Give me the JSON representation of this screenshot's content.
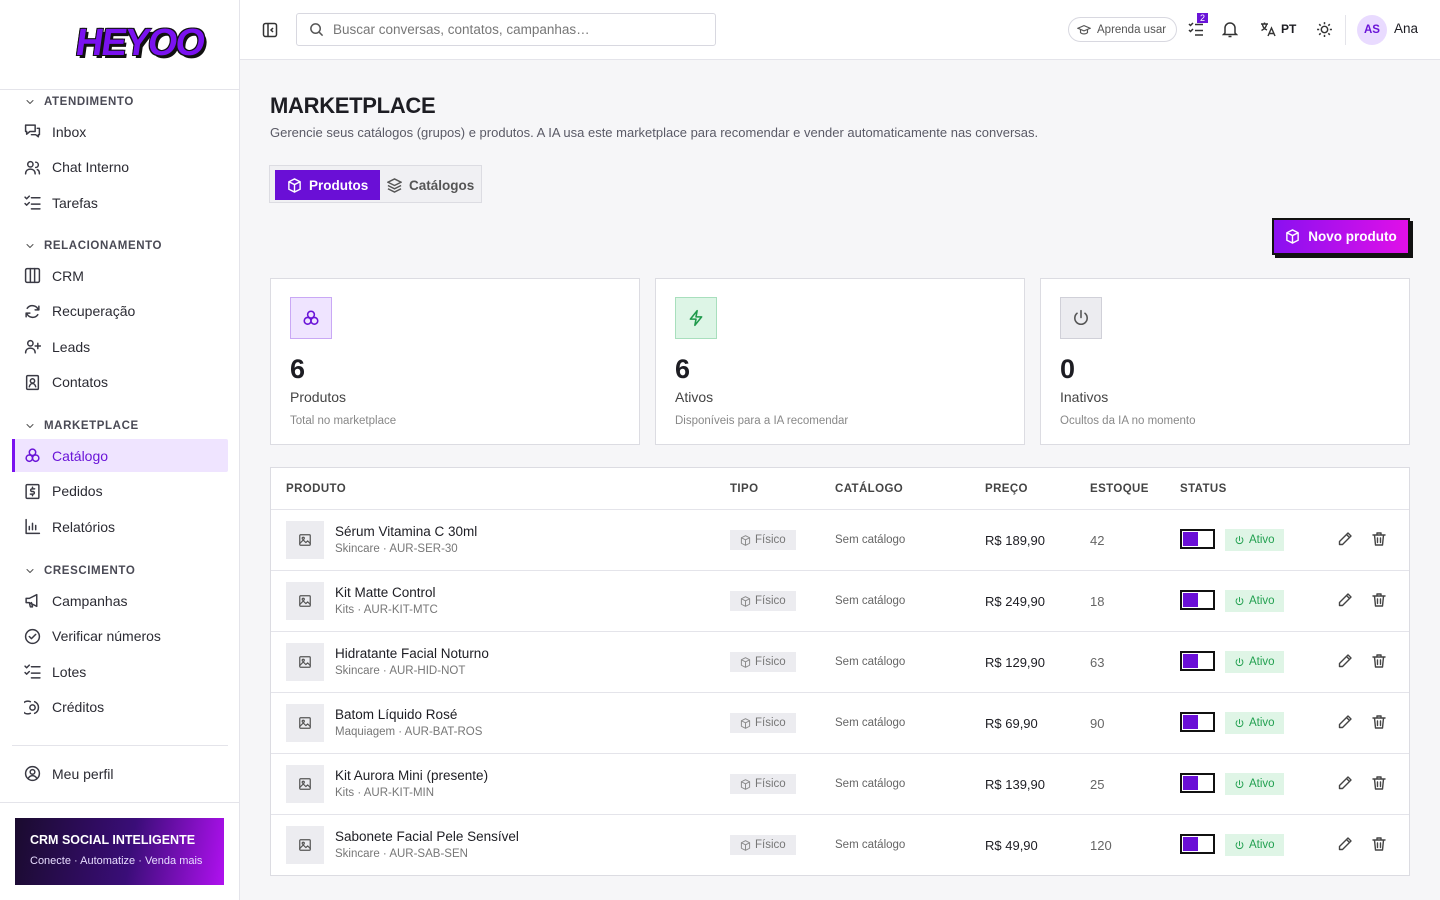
{
  "sidebar": {
    "logo": "HEYOO",
    "sections": [
      {
        "title": "ATENDIMENTO",
        "items": [
          "Inbox",
          "Chat Interno",
          "Tarefas"
        ]
      },
      {
        "title": "RELACIONAMENTO",
        "items": [
          "CRM",
          "Recuperação",
          "Leads",
          "Contatos"
        ]
      },
      {
        "title": "MARKETPLACE",
        "items": [
          "Catálogo",
          "Pedidos",
          "Relatórios"
        ]
      },
      {
        "title": "CRESCIMENTO",
        "items": [
          "Campanhas",
          "Verificar números",
          "Lotes",
          "Créditos"
        ]
      }
    ],
    "profile": "Meu perfil",
    "promo": {
      "title": "CRM SOCIAL INTELIGENTE",
      "subtitle": "Conecte · Automatize · Venda mais"
    }
  },
  "topbar": {
    "search_placeholder": "Buscar conversas, contatos, campanhas…",
    "help": "Aprenda usar",
    "tasks_badge": 2,
    "language": "PT",
    "avatar": "AS",
    "user": "Ana"
  },
  "page": {
    "title": "MARKETPLACE",
    "description": "Gerencie seus catálogos (grupos) e produtos. A IA usa este marketplace para recomendar e vender automaticamente nas conversas.",
    "tabs": [
      "Produtos",
      "Catálogos"
    ],
    "new_button": "Novo produto"
  },
  "stats": [
    {
      "value": 6,
      "label": "Produtos",
      "note": "Total no marketplace"
    },
    {
      "value": 6,
      "label": "Ativos",
      "note": "Disponíveis para a IA recomendar"
    },
    {
      "value": 0,
      "label": "Inativos",
      "note": "Ocultos da IA no momento"
    }
  ],
  "table": {
    "headers": [
      "PRODUTO",
      "TIPO",
      "CATÁLOGO",
      "PREÇO",
      "ESTOQUE",
      "STATUS"
    ],
    "rows": [
      {
        "name": "Sérum Vitamina C 30ml",
        "meta": "Skincare · AUR-SER-30",
        "type": "Físico",
        "catalog": "Sem catálogo",
        "price": "R$ 189,90",
        "stock": 42,
        "status": "Ativo"
      },
      {
        "name": "Kit Matte Control",
        "meta": "Kits · AUR-KIT-MTC",
        "type": "Físico",
        "catalog": "Sem catálogo",
        "price": "R$ 249,90",
        "stock": 18,
        "status": "Ativo"
      },
      {
        "name": "Hidratante Facial Noturno",
        "meta": "Skincare · AUR-HID-NOT",
        "type": "Físico",
        "catalog": "Sem catálogo",
        "price": "R$ 129,90",
        "stock": 63,
        "status": "Ativo"
      },
      {
        "name": "Batom Líquido Rosé",
        "meta": "Maquiagem · AUR-BAT-ROS",
        "type": "Físico",
        "catalog": "Sem catálogo",
        "price": "R$ 69,90",
        "stock": 90,
        "status": "Ativo"
      },
      {
        "name": "Kit Aurora Mini (presente)",
        "meta": "Kits · AUR-KIT-MIN",
        "type": "Físico",
        "catalog": "Sem catálogo",
        "price": "R$ 139,90",
        "stock": 25,
        "status": "Ativo"
      },
      {
        "name": "Sabonete Facial Pele Sensível",
        "meta": "Skincare · AUR-SAB-SEN",
        "type": "Físico",
        "catalog": "Sem catálogo",
        "price": "R$ 49,90",
        "stock": 120,
        "status": "Ativo"
      }
    ]
  }
}
